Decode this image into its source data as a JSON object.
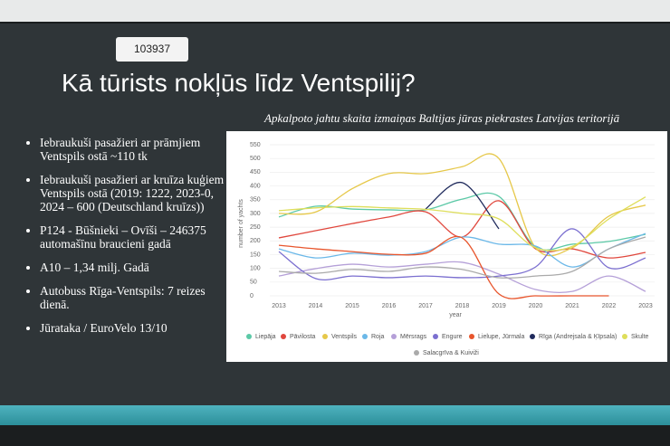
{
  "slide": {
    "badge": "103937",
    "title": "Kā tūrists nokļūs līdz Ventspilij?",
    "bullets": [
      "Iebraukuši pasažieri ar prāmjiem Ventspils ostā ~110 tk",
      "Iebraukuši pasažieri ar kruīza kuģiem Ventspils ostā (2019: 1222, 2023-0, 2024 – 600 (Deutschland kruīzs))",
      "P124 - Būšnieki – Ovīši – 246375 automašīnu braucieni gadā",
      "A10 – 1,34 milj. Gadā",
      "Autobuss Rīga-Ventspils: 7 reizes dienā.",
      "Jūrataka / EuroVelo 13/10"
    ]
  },
  "chart_data": {
    "type": "line",
    "title": "Apkalpoto jahtu skaita izmaiņas Baltijas jūras piekrastes Latvijas teritorijā",
    "x_label": "year",
    "y_label": "number of yachts",
    "categories": [
      "2013",
      "2014",
      "2015",
      "2016",
      "2017",
      "2018",
      "2019",
      "2020",
      "2021",
      "2022",
      "2023"
    ],
    "ylim": [
      0,
      550
    ],
    "yticks": [
      0,
      50,
      100,
      150,
      200,
      250,
      300,
      350,
      400,
      450,
      500,
      550
    ],
    "grid": true,
    "series": [
      {
        "name": "Liepāja",
        "color": "#5cc9a7",
        "values": [
          287,
          326,
          316,
          313,
          313,
          352,
          362,
          178,
          188,
          198,
          224
        ]
      },
      {
        "name": "Pāvilosta",
        "color": "#e0473d",
        "values": [
          211,
          237,
          263,
          287,
          306,
          214,
          346,
          171,
          171,
          138,
          158
        ]
      },
      {
        "name": "Ventspils",
        "color": "#e6c84a",
        "values": [
          300,
          305,
          390,
          445,
          445,
          470,
          500,
          175,
          175,
          290,
          330
        ]
      },
      {
        "name": "Roja",
        "color": "#6bb8e8",
        "values": [
          171,
          138,
          155,
          148,
          161,
          214,
          188,
          181,
          105,
          171,
          227
        ]
      },
      {
        "name": "Mērsrags",
        "color": "#b5a0d8",
        "values": [
          72,
          99,
          115,
          105,
          115,
          122,
          79,
          23,
          16,
          72,
          16
        ]
      },
      {
        "name": "Engure",
        "color": "#7b6fd0",
        "values": [
          161,
          63,
          72,
          66,
          72,
          66,
          72,
          105,
          244,
          102,
          138
        ]
      },
      {
        "name": "Lielupe, Jūrmala",
        "color": "#e8552c",
        "values": [
          184,
          171,
          161,
          151,
          155,
          211,
          7,
          0,
          0,
          0,
          null
        ]
      },
      {
        "name": "Rīga (Andrejsala & Ķīpsala)",
        "color": "#1f2a5c",
        "values": [
          null,
          null,
          null,
          null,
          316,
          412,
          244,
          null,
          null,
          null,
          null
        ]
      },
      {
        "name": "Skulte",
        "color": "#dede5a",
        "values": [
          310,
          320,
          325,
          320,
          315,
          300,
          280,
          175,
          180,
          280,
          360
        ]
      },
      {
        "name": "Salacgrīva & Kuiviži",
        "color": "#aaaaaa",
        "values": [
          89,
          82,
          96,
          89,
          105,
          96,
          66,
          72,
          89,
          171,
          214
        ]
      }
    ]
  }
}
